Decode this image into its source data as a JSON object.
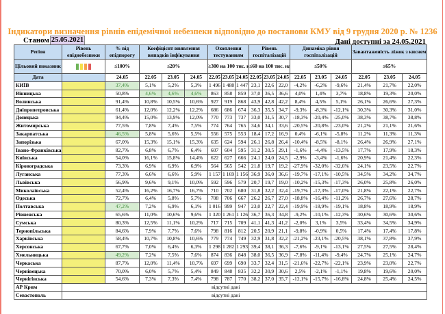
{
  "title": "Індикатори визначення рівнів епідемічної небезпеки відповідно до постанови КМУ від 9 грудня 2020 р. № 1236",
  "as_of_label": "Станом на",
  "as_of_date": "25.05.2021",
  "available_label": "Дані доступні за",
  "available_date": "24.05.2021",
  "headers": {
    "region": "Регіон",
    "level": "Рівень епіднебезпеки",
    "pct": "% від епідпорогу",
    "coef": "Коефіцієнт виявлення випадків інфікування",
    "testing": "Охоплення тестуванням",
    "hosp": "Рівень госпіталізацій",
    "dyn": "Динаміка рівня госпіталізацій",
    "beds": "Завантаженість ліжок з киснем"
  },
  "targets": {
    "label": "Цільовий показник",
    "pct": "≤100%",
    "coef": "≤20%",
    "testing": "≥300 на 100 тис. нас.",
    "hosp": "≤60 на 100 тис. нас.",
    "dyn": "≤50%",
    "beds": "≤65%"
  },
  "level_colors": [
    "#6fb45a",
    "#f5e04a",
    "#f6a24a",
    "#e05a5a"
  ],
  "date_label": "Дата",
  "dates": [
    "24.05",
    "22.05",
    "23.05",
    "24.05",
    "22.05",
    "23.05",
    "24.05",
    "22.05",
    "23.05",
    "24.05",
    "22.05",
    "23.05",
    "24.05",
    "22.05",
    "23.05",
    "24.05"
  ],
  "rows": [
    [
      "КИЇВ",
      "37,4%",
      "5,1%",
      "5,2%",
      "5,3%",
      "1 496",
      "1 488",
      "1 447",
      "23,1",
      "22,6",
      "22,0",
      "-4,2%",
      "-6,2%",
      "-9,6%",
      "21,4%",
      "21,7%",
      "22,0%"
    ],
    [
      "Вінницька",
      "50,8%",
      "4,6%",
      "4,6%",
      "4,6%",
      "863",
      "858",
      "859",
      "37,0",
      "36,5",
      "36,6",
      "4,0%",
      "1,4%",
      "3,7%",
      "18,8%",
      "19,3%",
      "20,0%"
    ],
    [
      "Волинська",
      "91,4%",
      "10,8%",
      "10,5%",
      "10,6%",
      "927",
      "919",
      "868",
      "43,9",
      "42,8",
      "42,2",
      "8,4%",
      "4,5%",
      "5,1%",
      "26,1%",
      "26,6%",
      "27,3%"
    ],
    [
      "Дніпропетровська",
      "61,4%",
      "12,0%",
      "12,2%",
      "12,2%",
      "686",
      "686",
      "674",
      "36,3",
      "35,5",
      "34,7",
      "-9,3%",
      "-8,3%",
      "-12,1%",
      "30,3%",
      "30,3%",
      "31,0%"
    ],
    [
      "Донецька",
      "94,4%",
      "15,0%",
      "13,9%",
      "12,0%",
      "770",
      "773",
      "737",
      "33,0",
      "31,5",
      "30,7",
      "-18,3%",
      "-20,4%",
      "-25,0%",
      "38,3%",
      "38,7%",
      "38,8%"
    ],
    [
      "Житомирська",
      "77,5%",
      "7,8%",
      "7,4%",
      "7,5%",
      "774",
      "764",
      "765",
      "34,6",
      "34,1",
      "33,6",
      "-20,5%",
      "-20,8%",
      "-23,0%",
      "21,2%",
      "21,1%",
      "21,6%"
    ],
    [
      "Закарпатська",
      "46,5%",
      "5,8%",
      "5,6%",
      "5,5%",
      "556",
      "575",
      "553",
      "18,4",
      "17,2",
      "16,9",
      "0,4%",
      "-6,1%",
      "-5,8%",
      "11,2%",
      "11,3%",
      "11,3%"
    ],
    [
      "Запорізька",
      "67,0%",
      "15,3%",
      "15,1%",
      "15,3%",
      "635",
      "624",
      "594",
      "26,1",
      "26,8",
      "26,4",
      "-10,4%",
      "-8,5%",
      "-8,1%",
      "26,4%",
      "26,9%",
      "27,1%"
    ],
    [
      "Івано-Франківська",
      "82,7%",
      "6,8%",
      "6,7%",
      "6,4%",
      "607",
      "604",
      "595",
      "31,2",
      "30,5",
      "29,1",
      "-1,6%",
      "-4,4%",
      "-13,5%",
      "17,7%",
      "17,9%",
      "18,3%"
    ],
    [
      "Київська",
      "54,0%",
      "16,1%",
      "15,8%",
      "14,4%",
      "622",
      "627",
      "666",
      "24,1",
      "24,0",
      "24,5",
      "-2,9%",
      "-3,4%",
      "-1,6%",
      "20,9%",
      "21,4%",
      "22,3%"
    ],
    [
      "Кіровоградська",
      "73,3%",
      "6,9%",
      "6,9%",
      "6,9%",
      "564",
      "565",
      "542",
      "21,8",
      "19,7",
      "19,2",
      "-27,9%",
      "-32,0%",
      "-32,6%",
      "24,1%",
      "23,5%",
      "22,7%"
    ],
    [
      "Луганська",
      "77,3%",
      "6,6%",
      "6,6%",
      "5,9%",
      "1 157",
      "1 169",
      "1 156",
      "36,9",
      "36,0",
      "36,6",
      "-19,7%",
      "-17,1%",
      "-10,5%",
      "34,5%",
      "34,2%",
      "34,7%"
    ],
    [
      "Львівська",
      "56,9%",
      "9,6%",
      "9,1%",
      "10,0%",
      "592",
      "596",
      "579",
      "20,7",
      "19,7",
      "19,0",
      "-10,2%",
      "-15,3%",
      "-17,3%",
      "26,0%",
      "25,8%",
      "26,0%"
    ],
    [
      "Миколаївська",
      "52,4%",
      "16,2%",
      "16,7%",
      "16,7%",
      "710",
      "702",
      "680",
      "31,8",
      "32,2",
      "32,4",
      "-19,7%",
      "-17,3%",
      "-17,0%",
      "21,8%",
      "22,1%",
      "22,7%"
    ],
    [
      "Одеська",
      "72,7%",
      "6,4%",
      "5,8%",
      "5,7%",
      "708",
      "706",
      "667",
      "26,2",
      "26,7",
      "27,0",
      "-18,8%",
      "-16,4%",
      "-11,2%",
      "26,7%",
      "27,6%",
      "28,7%"
    ],
    [
      "Полтавська",
      "47,2%",
      "7,2%",
      "6,9%",
      "6,1%",
      "1 016",
      "999",
      "947",
      "23,0",
      "22,7",
      "22,4",
      "-19,9%",
      "-18,9%",
      "-19,1%",
      "18,8%",
      "18,9%",
      "18,9%"
    ],
    [
      "Рівненська",
      "65,6%",
      "11,0%",
      "10,6%",
      "9,6%",
      "1 320",
      "1 261",
      "1 126",
      "36,7",
      "36,3",
      "34,8",
      "-9,2%",
      "-10,1%",
      "-12,3%",
      "30,6%",
      "30,6%",
      "30,6%"
    ],
    [
      "Сумська",
      "80,3%",
      "12,5%",
      "11,1%",
      "10,2%",
      "717",
      "715",
      "709",
      "41,1",
      "41,3",
      "41,2",
      "-2,0%",
      "3,1%",
      "3,5%",
      "33,4%",
      "34,5%",
      "34,9%"
    ],
    [
      "Тернопільська",
      "84,6%",
      "7,9%",
      "7,7%",
      "7,6%",
      "798",
      "816",
      "812",
      "20,5",
      "20,9",
      "21,1",
      "-9,8%",
      "-0,9%",
      "0,5%",
      "17,4%",
      "17,4%",
      "17,8%"
    ],
    [
      "Харківська",
      "58,4%",
      "10,7%",
      "10,8%",
      "10,6%",
      "779",
      "774",
      "749",
      "32,9",
      "31,8",
      "32,2",
      "-21,2%",
      "-23,1%",
      "-20,5%",
      "38,1%",
      "37,8%",
      "37,9%"
    ],
    [
      "Херсонська",
      "67,7%",
      "7,0%",
      "6,4%",
      "6,3%",
      "1 298",
      "1 282",
      "1 293",
      "39,4",
      "38,1",
      "36,3",
      "-7,6%",
      "-9,1%",
      "-13,1%",
      "27,5%",
      "27,5%",
      "28,4%"
    ],
    [
      "Хмельницька",
      "49,2%",
      "7,2%",
      "7,5%",
      "7,6%",
      "874",
      "836",
      "848",
      "38,0",
      "36,5",
      "36,9",
      "-7,8%",
      "-11,4%",
      "-9,4%",
      "24,7%",
      "25,1%",
      "24,7%"
    ],
    [
      "Черкаська",
      "87,7%",
      "12,0%",
      "11,4%",
      "10,7%",
      "697",
      "699",
      "690",
      "33,7",
      "32,4",
      "31,5",
      "-21,6%",
      "-22,7%",
      "-22,1%",
      "23,9%",
      "23,0%",
      "22,7%"
    ],
    [
      "Чернівецька",
      "70,0%",
      "6,0%",
      "5,7%",
      "5,4%",
      "849",
      "848",
      "835",
      "32,2",
      "30,9",
      "30,6",
      "2,5%",
      "-2,1%",
      "-1,1%",
      "19,8%",
      "19,6%",
      "20,0%"
    ],
    [
      "Чернігівська",
      "54,6%",
      "7,3%",
      "7,3%",
      "7,4%",
      "798",
      "787",
      "770",
      "38,2",
      "37,0",
      "35,7",
      "-12,1%",
      "-15,7%",
      "-16,8%",
      "24,8%",
      "25,4%",
      "24,5%"
    ]
  ],
  "highlight": {
    "0": [
      1
    ],
    "1": [
      2,
      3,
      4
    ],
    "6": [
      1
    ],
    "15": [
      1
    ],
    "21": [
      1
    ]
  },
  "missing_rows": [
    {
      "region": "АР Крим",
      "note": "відсутні дані"
    },
    {
      "region": "Севастополь",
      "note": "відсутні дані"
    }
  ]
}
